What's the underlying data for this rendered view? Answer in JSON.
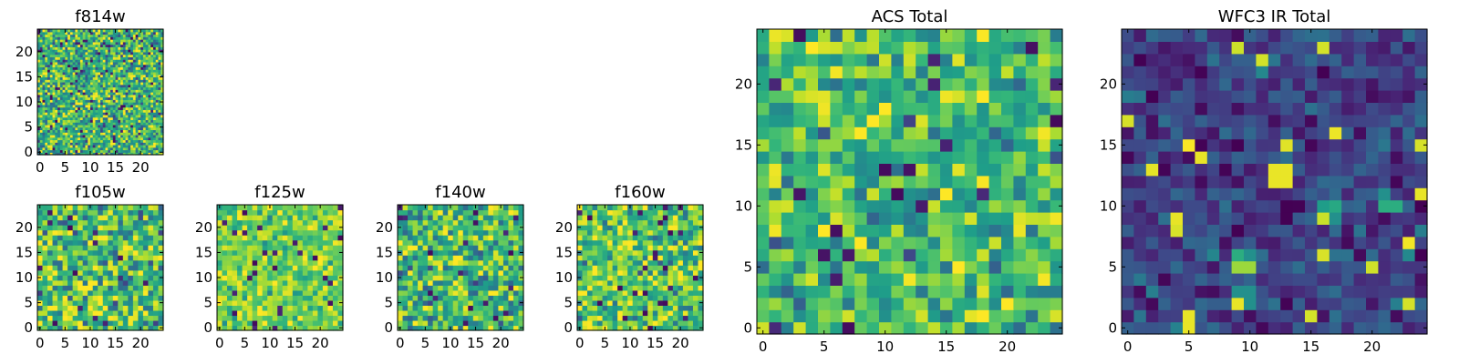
{
  "chart_data": [
    {
      "type": "heatmap",
      "id": "f814w",
      "title": "f814w",
      "grid": [
        50,
        50
      ],
      "xlim": [
        -0.5,
        24.5
      ],
      "ylim": [
        -0.5,
        24.5
      ],
      "xticks": [
        0,
        5,
        10,
        15,
        20
      ],
      "yticks": [
        0,
        5,
        10,
        15,
        20
      ],
      "colormap": "viridis",
      "value_range": [
        0,
        1
      ],
      "background_mean": 0.65,
      "background_spread": 0.25,
      "seed": 814
    },
    {
      "type": "heatmap",
      "id": "f105w",
      "title": "f105w",
      "grid": [
        25,
        25
      ],
      "xlim": [
        -0.5,
        24.5
      ],
      "ylim": [
        -0.5,
        24.5
      ],
      "xticks": [
        0,
        5,
        10,
        15,
        20
      ],
      "yticks": [
        0,
        5,
        10,
        15,
        20
      ],
      "colormap": "viridis",
      "value_range": [
        0,
        1
      ],
      "background_mean": 0.68,
      "background_spread": 0.25,
      "seed": 105
    },
    {
      "type": "heatmap",
      "id": "f125w",
      "title": "f125w",
      "grid": [
        25,
        25
      ],
      "xlim": [
        -0.5,
        24.5
      ],
      "ylim": [
        -0.5,
        24.5
      ],
      "xticks": [
        0,
        5,
        10,
        15,
        20
      ],
      "yticks": [
        0,
        5,
        10,
        15,
        20
      ],
      "colormap": "viridis",
      "value_range": [
        0,
        1
      ],
      "background_mean": 0.78,
      "background_spread": 0.15,
      "seed": 125
    },
    {
      "type": "heatmap",
      "id": "f140w",
      "title": "f140w",
      "grid": [
        25,
        25
      ],
      "xlim": [
        -0.5,
        24.5
      ],
      "ylim": [
        -0.5,
        24.5
      ],
      "xticks": [
        0,
        5,
        10,
        15,
        20
      ],
      "yticks": [
        0,
        5,
        10,
        15,
        20
      ],
      "colormap": "viridis",
      "value_range": [
        0,
        1
      ],
      "background_mean": 0.66,
      "background_spread": 0.25,
      "seed": 140
    },
    {
      "type": "heatmap",
      "id": "f160w",
      "title": "f160w",
      "grid": [
        25,
        25
      ],
      "xlim": [
        -0.5,
        24.5
      ],
      "ylim": [
        -0.5,
        24.5
      ],
      "xticks": [
        0,
        5,
        10,
        15,
        20
      ],
      "yticks": [
        0,
        5,
        10,
        15,
        20
      ],
      "colormap": "viridis",
      "value_range": [
        0,
        1
      ],
      "background_mean": 0.72,
      "background_spread": 0.22,
      "seed": 160
    },
    {
      "type": "heatmap",
      "id": "acs-total",
      "title": "ACS Total",
      "grid": [
        25,
        25
      ],
      "xlim": [
        -0.5,
        24.5
      ],
      "ylim": [
        -0.5,
        24.5
      ],
      "xticks": [
        0,
        5,
        10,
        15,
        20
      ],
      "yticks": [
        0,
        5,
        10,
        15,
        20
      ],
      "colormap": "viridis",
      "value_range": [
        0,
        1
      ],
      "background_mean": 0.66,
      "background_spread": 0.2,
      "seed": 2024
    },
    {
      "type": "heatmap",
      "id": "wfc3-ir-total",
      "title": "WFC3 IR Total",
      "grid": [
        25,
        25
      ],
      "xlim": [
        -0.5,
        24.5
      ],
      "ylim": [
        -0.5,
        24.5
      ],
      "xticks": [
        0,
        5,
        10,
        15,
        20
      ],
      "yticks": [
        0,
        5,
        10,
        15,
        20
      ],
      "colormap": "viridis",
      "value_range": [
        0,
        1
      ],
      "background_mean": 0.2,
      "background_spread": 0.12,
      "seed": 3,
      "bright_pixels": [
        {
          "x": 12,
          "y": 12,
          "value": 0.97
        },
        {
          "x": 13,
          "y": 12,
          "value": 0.97
        },
        {
          "x": 12,
          "y": 13,
          "value": 0.97
        },
        {
          "x": 13,
          "y": 13,
          "value": 0.97
        },
        {
          "x": 16,
          "y": 10,
          "value": 0.55
        },
        {
          "x": 17,
          "y": 10,
          "value": 0.6
        },
        {
          "x": 16,
          "y": 9,
          "value": 0.92
        },
        {
          "x": 17,
          "y": 9,
          "value": 0.5
        },
        {
          "x": 21,
          "y": 10,
          "value": 0.62
        },
        {
          "x": 22,
          "y": 10,
          "value": 0.62
        },
        {
          "x": 21,
          "y": 11,
          "value": 0.5
        },
        {
          "x": 9,
          "y": 6,
          "value": 0.62
        },
        {
          "x": 9,
          "y": 5,
          "value": 0.85
        },
        {
          "x": 10,
          "y": 5,
          "value": 0.85
        },
        {
          "x": 10,
          "y": 6,
          "value": 0.5
        },
        {
          "x": 9,
          "y": 3,
          "value": 0.5
        },
        {
          "x": 10,
          "y": 3,
          "value": 0.5
        },
        {
          "x": 9,
          "y": 2,
          "value": 0.97
        },
        {
          "x": 10,
          "y": 2,
          "value": 0.5
        },
        {
          "x": 5,
          "y": 1,
          "value": 0.97
        },
        {
          "x": 5,
          "y": 0,
          "value": 0.97
        },
        {
          "x": 6,
          "y": 1,
          "value": 0.3
        }
      ]
    }
  ]
}
